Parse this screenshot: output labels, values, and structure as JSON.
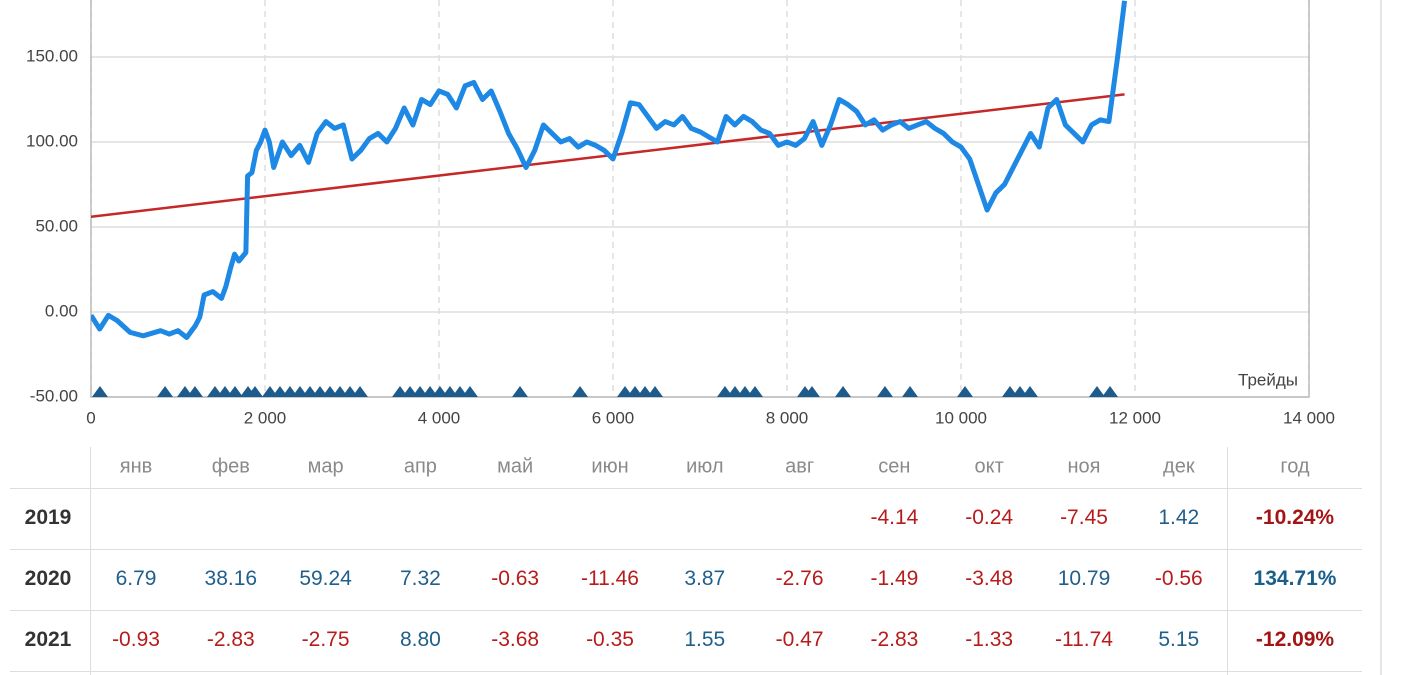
{
  "chart_data": {
    "type": "line",
    "x_label": "Трейды",
    "x": [
      0,
      100,
      200,
      300,
      450,
      600,
      800,
      900,
      1000,
      1100,
      1200,
      1250,
      1300,
      1400,
      1500,
      1550,
      1600,
      1650,
      1700,
      1780,
      1800,
      1850,
      1900,
      1950,
      2000,
      2050,
      2100,
      2200,
      2300,
      2400,
      2500,
      2600,
      2700,
      2800,
      2900,
      3000,
      3100,
      3200,
      3300,
      3400,
      3500,
      3600,
      3700,
      3800,
      3900,
      4000,
      4100,
      4200,
      4300,
      4400,
      4500,
      4600,
      4700,
      4800,
      4900,
      5000,
      5100,
      5200,
      5300,
      5400,
      5500,
      5600,
      5700,
      5800,
      5900,
      6000,
      6100,
      6200,
      6300,
      6400,
      6500,
      6600,
      6700,
      6800,
      6900,
      7000,
      7100,
      7200,
      7300,
      7400,
      7500,
      7600,
      7700,
      7800,
      7900,
      8000,
      8100,
      8200,
      8300,
      8400,
      8500,
      8600,
      8700,
      8800,
      8900,
      9000,
      9100,
      9200,
      9300,
      9400,
      9500,
      9600,
      9700,
      9800,
      9900,
      10000,
      10100,
      10200,
      10300,
      10400,
      10500,
      10600,
      10700,
      10800,
      10900,
      11000,
      11100,
      11200,
      11300,
      11400,
      11500,
      11600,
      11700,
      11800,
      11880
    ],
    "values": [
      -2,
      -10,
      -2,
      -5,
      -12,
      -14,
      -11,
      -13,
      -11,
      -15,
      -8,
      -3,
      10,
      12,
      8,
      15,
      25,
      34,
      30,
      35,
      80,
      82,
      95,
      100,
      107,
      100,
      85,
      100,
      92,
      98,
      88,
      105,
      112,
      108,
      110,
      90,
      95,
      102,
      105,
      100,
      108,
      120,
      110,
      125,
      122,
      130,
      128,
      120,
      133,
      135,
      125,
      130,
      118,
      105,
      96,
      85,
      95,
      110,
      105,
      100,
      102,
      97,
      100,
      98,
      95,
      90,
      105,
      123,
      122,
      115,
      108,
      112,
      110,
      115,
      108,
      106,
      103,
      100,
      115,
      110,
      115,
      112,
      107,
      105,
      98,
      100,
      98,
      102,
      112,
      98,
      110,
      125,
      122,
      118,
      110,
      113,
      107,
      110,
      112,
      108,
      110,
      112,
      108,
      105,
      100,
      97,
      90,
      75,
      60,
      70,
      75,
      85,
      95,
      105,
      97,
      120,
      125,
      110,
      105,
      100,
      110,
      113,
      112,
      150,
      183
    ],
    "color": "#1e88e5",
    "trend": {
      "x": [
        0,
        11880
      ],
      "values": [
        56,
        128
      ],
      "color": "#c62828"
    },
    "markers": {
      "x": [
        103,
        851,
        1080,
        1195,
        1425,
        1540,
        1655,
        1805,
        1885,
        2057,
        2172,
        2287,
        2402,
        2517,
        2632,
        2747,
        2862,
        2977,
        3092,
        3552,
        3667,
        3782,
        3897,
        4011,
        4126,
        4241,
        4356,
        4931,
        5621,
        6138,
        6253,
        6368,
        6483,
        7287,
        7402,
        7517,
        7632,
        8207,
        8287,
        8644,
        9126,
        9414,
        10046,
        10563,
        10678,
        10793,
        11563,
        11713
      ],
      "color": "#1d5b8c"
    },
    "xlim": [
      0,
      14000
    ],
    "ylim": [
      -50,
      183.5
    ],
    "xticks": [
      0,
      {
        "value": 2000,
        "label": "2 000"
      },
      {
        "value": 4000,
        "label": "4 000"
      },
      {
        "value": 6000,
        "label": "6 000"
      },
      {
        "value": 8000,
        "label": "8 000"
      },
      {
        "value": 10000,
        "label": "10 000"
      },
      {
        "value": 12000,
        "label": "12 000"
      },
      {
        "value": 14000,
        "label": "14 000"
      }
    ],
    "yticks": [
      {
        "value": -50,
        "label": "-50.00"
      },
      {
        "value": 0,
        "label": "0.00"
      },
      {
        "value": 50,
        "label": "50.00"
      },
      {
        "value": 100,
        "label": "100.00"
      },
      {
        "value": 150,
        "label": "150.00"
      }
    ],
    "grid": true
  },
  "table": {
    "columns": [
      "янв",
      "фев",
      "мар",
      "апр",
      "май",
      "июн",
      "июл",
      "авг",
      "сен",
      "окт",
      "ноя",
      "дек",
      "год"
    ],
    "rows": [
      {
        "year": "2019",
        "values": [
          null,
          null,
          null,
          null,
          null,
          null,
          null,
          null,
          "-4.14",
          "-0.24",
          "-7.45",
          "1.42"
        ],
        "total": "-10.24%"
      },
      {
        "year": "2020",
        "values": [
          "6.79",
          "38.16",
          "59.24",
          "7.32",
          "-0.63",
          "-11.46",
          "3.87",
          "-2.76",
          "-1.49",
          "-3.48",
          "10.79",
          "-0.56"
        ],
        "total": "134.71%"
      },
      {
        "year": "2021",
        "values": [
          "-0.93",
          "-2.83",
          "-2.75",
          "8.80",
          "-3.68",
          "-0.35",
          "1.55",
          "-0.47",
          "-2.83",
          "-1.33",
          "-11.74",
          "5.15"
        ],
        "total": "-12.09%"
      }
    ]
  }
}
